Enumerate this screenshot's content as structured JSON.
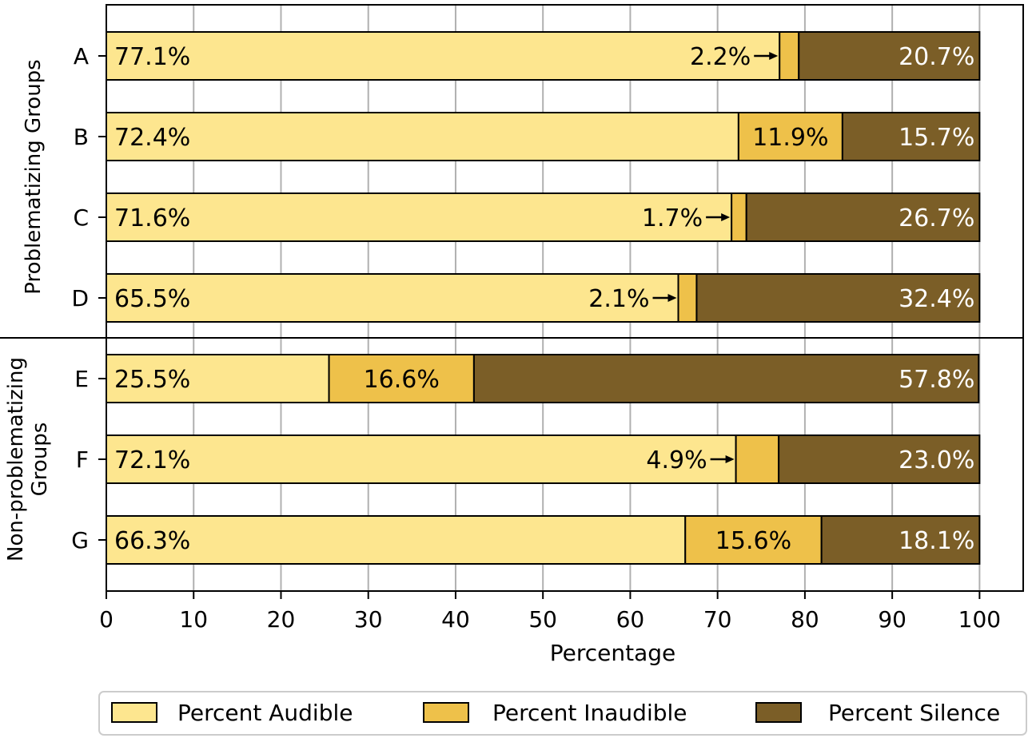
{
  "chart_data": {
    "type": "bar",
    "orientation": "horizontal",
    "stacked": true,
    "categories": [
      "A",
      "B",
      "C",
      "D",
      "E",
      "F",
      "G"
    ],
    "series": [
      {
        "name": "Percent Audible",
        "color": "#fde68f",
        "values": [
          77.1,
          72.4,
          71.6,
          65.5,
          25.5,
          72.1,
          66.3
        ],
        "labels": [
          "77.1%",
          "72.4%",
          "71.6%",
          "65.5%",
          "25.5%",
          "72.1%",
          "66.3%"
        ]
      },
      {
        "name": "Percent Inaudible",
        "color": "#eec14a",
        "values": [
          2.2,
          11.9,
          1.7,
          2.1,
          16.6,
          4.9,
          15.6
        ],
        "labels": [
          "2.2%",
          "11.9%",
          "1.7%",
          "2.1%",
          "16.6%",
          "4.9%",
          "15.6%"
        ]
      },
      {
        "name": "Percent Silence",
        "color": "#7b5e27",
        "values": [
          20.7,
          15.7,
          26.7,
          32.4,
          57.8,
          23.0,
          18.1
        ],
        "labels": [
          "20.7%",
          "15.7%",
          "26.7%",
          "32.4%",
          "57.8%",
          "23.0%",
          "18.1%"
        ]
      }
    ],
    "arrow_annotations": [
      "A",
      "C",
      "D",
      "F"
    ],
    "groups": [
      {
        "label": "Problematizing Groups",
        "categories": [
          "A",
          "B",
          "C",
          "D"
        ]
      },
      {
        "label_lines": [
          "Non-problematizing",
          "Groups"
        ],
        "categories": [
          "E",
          "F",
          "G"
        ]
      }
    ],
    "xlabel": "Percentage",
    "xlim": [
      0,
      105
    ],
    "xticks": [
      0,
      10,
      20,
      30,
      40,
      50,
      60,
      70,
      80,
      90,
      100
    ],
    "xtick_labels": [
      "0",
      "10",
      "20",
      "30",
      "40",
      "50",
      "60",
      "70",
      "80",
      "90",
      "100"
    ],
    "grid": "vertical",
    "legend_position": "bottom-center"
  }
}
